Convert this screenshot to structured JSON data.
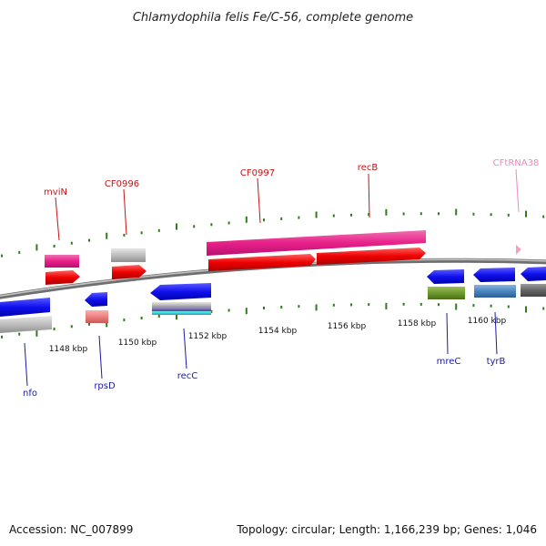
{
  "title": "Chlamydophila felis Fe/C-56, complete genome",
  "footer": {
    "accession": "Accession: NC_007899",
    "stats": "Topology: circular; Length: 1,166,239 bp; Genes: 1,046"
  },
  "colors": {
    "backbone": "#8c8c8c",
    "tick": "#2e7d1a",
    "label_top": "#cc1111",
    "label_bottom": "#1a1aaa",
    "label_trna": "#ee88bb"
  },
  "scale_labels": [
    "1148 kbp",
    "1150 kbp",
    "1152 kbp",
    "1154 kbp",
    "1156 kbp",
    "1158 kbp",
    "1160 kbp"
  ],
  "gene_labels": [
    {
      "name": "mviN",
      "strand": "top"
    },
    {
      "name": "CF0996",
      "strand": "top"
    },
    {
      "name": "CF0997",
      "strand": "top"
    },
    {
      "name": "recB",
      "strand": "top"
    },
    {
      "name": "CFtRNA38",
      "strand": "trna"
    },
    {
      "name": "nfo",
      "strand": "bottom"
    },
    {
      "name": "rpsD",
      "strand": "bottom"
    },
    {
      "name": "recC",
      "strand": "bottom"
    },
    {
      "name": "mreC",
      "strand": "bottom"
    },
    {
      "name": "tyrB",
      "strand": "bottom"
    }
  ]
}
